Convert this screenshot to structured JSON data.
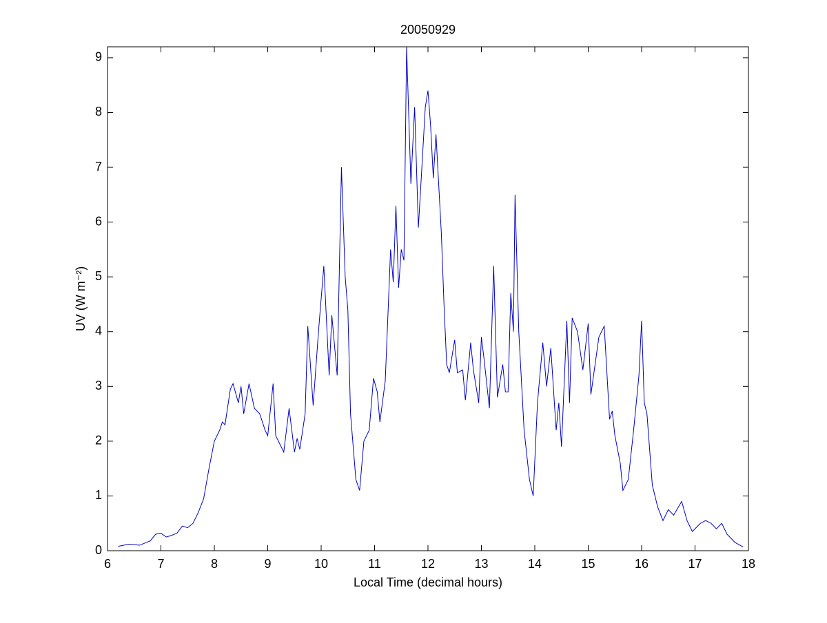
{
  "chart_data": {
    "type": "line",
    "title": "20050929",
    "x_label": "Local Time (decimal hours)",
    "y_label": "UV (W m⁻²)",
    "x": [
      6.2,
      6.4,
      6.6,
      6.8,
      6.9,
      7.0,
      7.1,
      7.2,
      7.3,
      7.4,
      7.5,
      7.6,
      7.7,
      7.8,
      7.9,
      8.0,
      8.1,
      8.15,
      8.2,
      8.3,
      8.35,
      8.45,
      8.5,
      8.55,
      8.65,
      8.75,
      8.85,
      8.95,
      9.0,
      9.1,
      9.15,
      9.3,
      9.4,
      9.5,
      9.55,
      9.6,
      9.7,
      9.75,
      9.85,
      9.95,
      10.05,
      10.1,
      10.15,
      10.2,
      10.3,
      10.38,
      10.45,
      10.5,
      10.55,
      10.65,
      10.72,
      10.8,
      10.9,
      10.98,
      11.05,
      11.1,
      11.2,
      11.3,
      11.35,
      11.4,
      11.45,
      11.5,
      11.55,
      11.6,
      11.68,
      11.75,
      11.82,
      11.88,
      11.95,
      12.0,
      12.05,
      12.1,
      12.15,
      12.25,
      12.3,
      12.35,
      12.4,
      12.5,
      12.55,
      12.65,
      12.7,
      12.8,
      12.85,
      12.95,
      13.0,
      13.05,
      13.15,
      13.23,
      13.3,
      13.4,
      13.45,
      13.5,
      13.55,
      13.6,
      13.63,
      13.7,
      13.8,
      13.9,
      13.97,
      14.05,
      14.15,
      14.22,
      14.3,
      14.4,
      14.45,
      14.5,
      14.6,
      14.65,
      14.7,
      14.8,
      14.9,
      15.0,
      15.05,
      15.1,
      15.2,
      15.3,
      15.4,
      15.45,
      15.5,
      15.6,
      15.65,
      15.75,
      15.85,
      15.95,
      16.0,
      16.05,
      16.1,
      16.2,
      16.3,
      16.4,
      16.5,
      16.6,
      16.75,
      16.85,
      16.95,
      17.1,
      17.2,
      17.3,
      17.4,
      17.5,
      17.6,
      17.75,
      17.9
    ],
    "series": [
      {
        "color": "#0000c8",
        "values": [
          0.08,
          0.12,
          0.1,
          0.18,
          0.3,
          0.32,
          0.25,
          0.28,
          0.32,
          0.45,
          0.42,
          0.5,
          0.7,
          0.95,
          1.5,
          2.0,
          2.2,
          2.35,
          2.3,
          2.95,
          3.05,
          2.7,
          3.0,
          2.5,
          3.05,
          2.6,
          2.5,
          2.2,
          2.1,
          3.05,
          2.1,
          1.8,
          2.6,
          1.8,
          2.05,
          1.85,
          2.5,
          4.1,
          2.65,
          4.0,
          5.2,
          4.2,
          3.2,
          4.3,
          3.2,
          7.0,
          5.0,
          4.4,
          2.5,
          1.3,
          1.1,
          2.0,
          2.2,
          3.15,
          2.9,
          2.35,
          3.1,
          5.5,
          4.9,
          6.3,
          4.8,
          5.5,
          5.3,
          9.2,
          6.7,
          8.1,
          5.9,
          6.9,
          8.1,
          8.4,
          7.75,
          6.8,
          7.6,
          5.8,
          4.5,
          3.4,
          3.25,
          3.85,
          3.25,
          3.3,
          2.75,
          3.8,
          3.3,
          2.7,
          3.9,
          3.5,
          2.6,
          5.2,
          2.8,
          3.4,
          2.9,
          2.9,
          4.7,
          4.0,
          6.5,
          4.0,
          2.2,
          1.3,
          1.0,
          2.7,
          3.8,
          3.0,
          3.7,
          2.2,
          2.7,
          1.9,
          4.2,
          2.7,
          4.25,
          4.0,
          3.3,
          4.15,
          2.85,
          3.2,
          3.9,
          4.1,
          2.4,
          2.55,
          2.1,
          1.6,
          1.1,
          1.3,
          2.2,
          3.2,
          4.2,
          2.7,
          2.5,
          1.2,
          0.8,
          0.55,
          0.75,
          0.65,
          0.9,
          0.55,
          0.35,
          0.5,
          0.55,
          0.5,
          0.4,
          0.5,
          0.3,
          0.15,
          0.07
        ]
      }
    ],
    "xlim": [
      6,
      18
    ],
    "xticks": [
      6,
      7,
      8,
      9,
      10,
      11,
      12,
      13,
      14,
      15,
      16,
      17,
      18
    ],
    "ylim": [
      0,
      9.2
    ],
    "yticks": [
      0,
      1,
      2,
      3,
      4,
      5,
      6,
      7,
      8,
      9
    ],
    "grid": false
  }
}
